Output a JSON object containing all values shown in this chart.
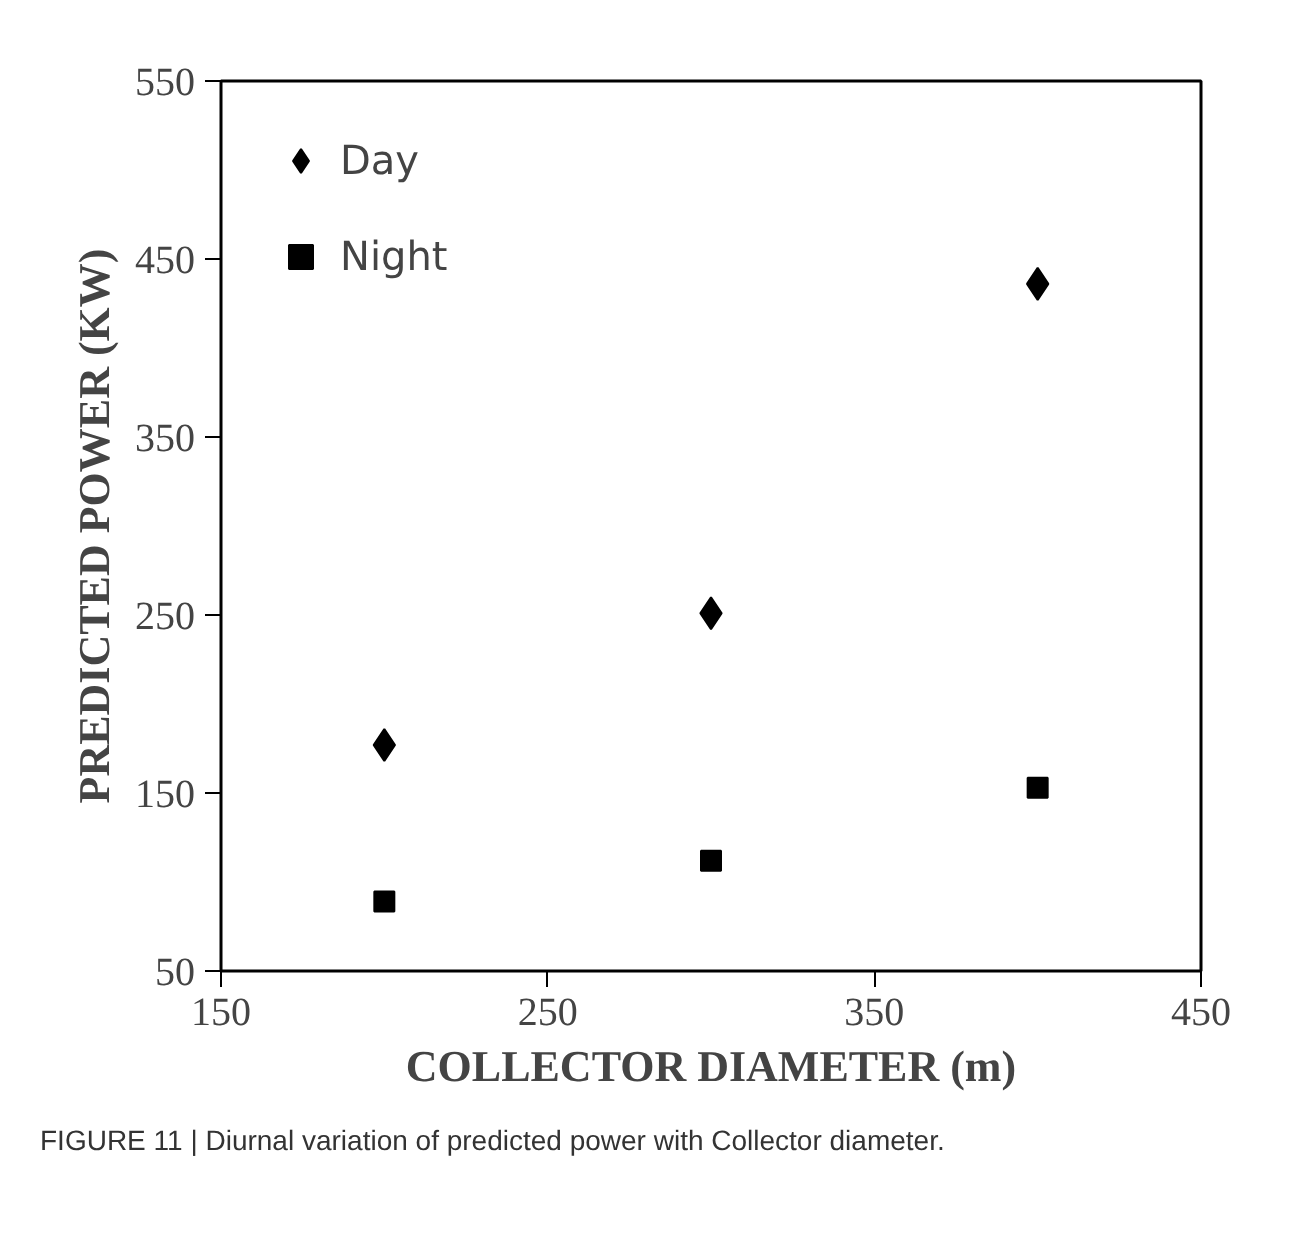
{
  "chart_data": {
    "type": "scatter",
    "xlabel": "COLLECTOR DIAMETER (m)",
    "ylabel": "PREDICTED POWER (KW)",
    "x": [
      200,
      300,
      400
    ],
    "series": [
      {
        "name": "Day",
        "color": "#000000",
        "marker": "diamond",
        "values": [
          177,
          251,
          436
        ]
      },
      {
        "name": "Night",
        "color": "#000000",
        "marker": "square",
        "values": [
          89,
          112,
          153
        ]
      }
    ],
    "xlim": [
      150,
      450
    ],
    "ylim": [
      50,
      550
    ],
    "xticks": [
      150,
      250,
      350,
      450
    ],
    "yticks": [
      50,
      150,
      250,
      350,
      450,
      550
    ],
    "grid": false,
    "legend": "top left",
    "annotations": [
      "FIGURE 11 | Diurnal variation of predicted power with Collector diameter."
    ]
  }
}
